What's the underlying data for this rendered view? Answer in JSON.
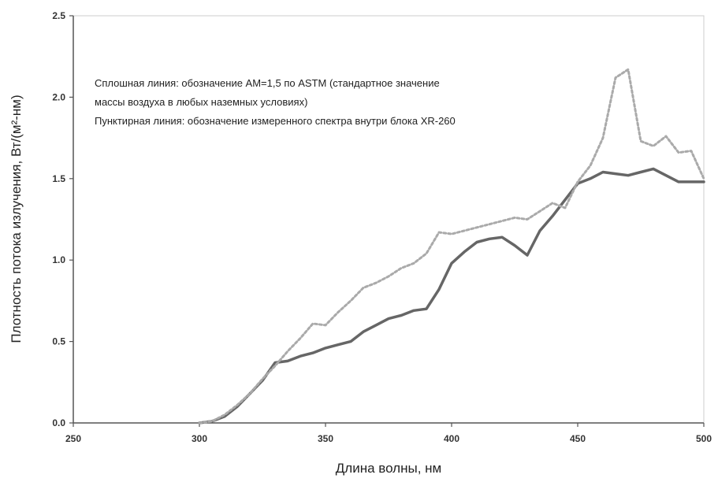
{
  "chart_data": {
    "type": "line",
    "title": "",
    "xlabel": "Длина волны, нм",
    "ylabel": "Плотность потока излучения, Вт/(м²-нм)",
    "xlim": [
      250,
      500
    ],
    "ylim": [
      0.0,
      2.5
    ],
    "xticks": [
      "250",
      "300",
      "350",
      "400",
      "450",
      "500"
    ],
    "yticks": [
      "0.0",
      "0.5",
      "1.0",
      "1.5",
      "2.0",
      "2.5"
    ],
    "grid": false,
    "annotations": [
      "Сплошная линия: обозначение AM=1,5 по ASTM (стандартное значение",
      "массы воздуха в любых наземных условиях)",
      "Пунктирная линия: обозначение измеренного спектра внутри блока XR-260"
    ],
    "series": [
      {
        "style": "solid",
        "color": "#666666",
        "x": [
          300,
          305,
          310,
          315,
          320,
          325,
          330,
          335,
          340,
          345,
          350,
          355,
          360,
          365,
          370,
          375,
          380,
          385,
          390,
          395,
          400,
          405,
          410,
          415,
          420,
          425,
          430,
          435,
          440,
          445,
          450,
          455,
          460,
          465,
          470,
          475,
          480,
          485,
          490,
          495,
          500
        ],
        "y": [
          0.0,
          0.01,
          0.04,
          0.1,
          0.18,
          0.26,
          0.37,
          0.38,
          0.41,
          0.43,
          0.46,
          0.48,
          0.5,
          0.56,
          0.6,
          0.64,
          0.66,
          0.69,
          0.7,
          0.82,
          0.98,
          1.05,
          1.11,
          1.13,
          1.14,
          1.09,
          1.03,
          1.18,
          1.27,
          1.37,
          1.47,
          1.5,
          1.54,
          1.53,
          1.52,
          1.54,
          1.56,
          1.52,
          1.48,
          1.48,
          1.48
        ]
      },
      {
        "style": "dotted",
        "color": "#aaaaaa",
        "x": [
          300,
          305,
          310,
          315,
          320,
          325,
          330,
          335,
          340,
          345,
          350,
          355,
          360,
          365,
          370,
          375,
          380,
          385,
          390,
          395,
          400,
          405,
          410,
          415,
          420,
          425,
          430,
          435,
          440,
          445,
          450,
          455,
          460,
          465,
          470,
          475,
          480,
          485,
          490,
          495,
          500
        ],
        "y": [
          0.0,
          0.01,
          0.05,
          0.11,
          0.18,
          0.27,
          0.35,
          0.44,
          0.52,
          0.61,
          0.6,
          0.68,
          0.75,
          0.83,
          0.86,
          0.9,
          0.95,
          0.98,
          1.04,
          1.17,
          1.16,
          1.18,
          1.2,
          1.22,
          1.24,
          1.26,
          1.25,
          1.3,
          1.35,
          1.32,
          1.48,
          1.58,
          1.75,
          2.12,
          2.17,
          1.73,
          1.7,
          1.76,
          1.66,
          1.67,
          1.5
        ]
      }
    ]
  }
}
